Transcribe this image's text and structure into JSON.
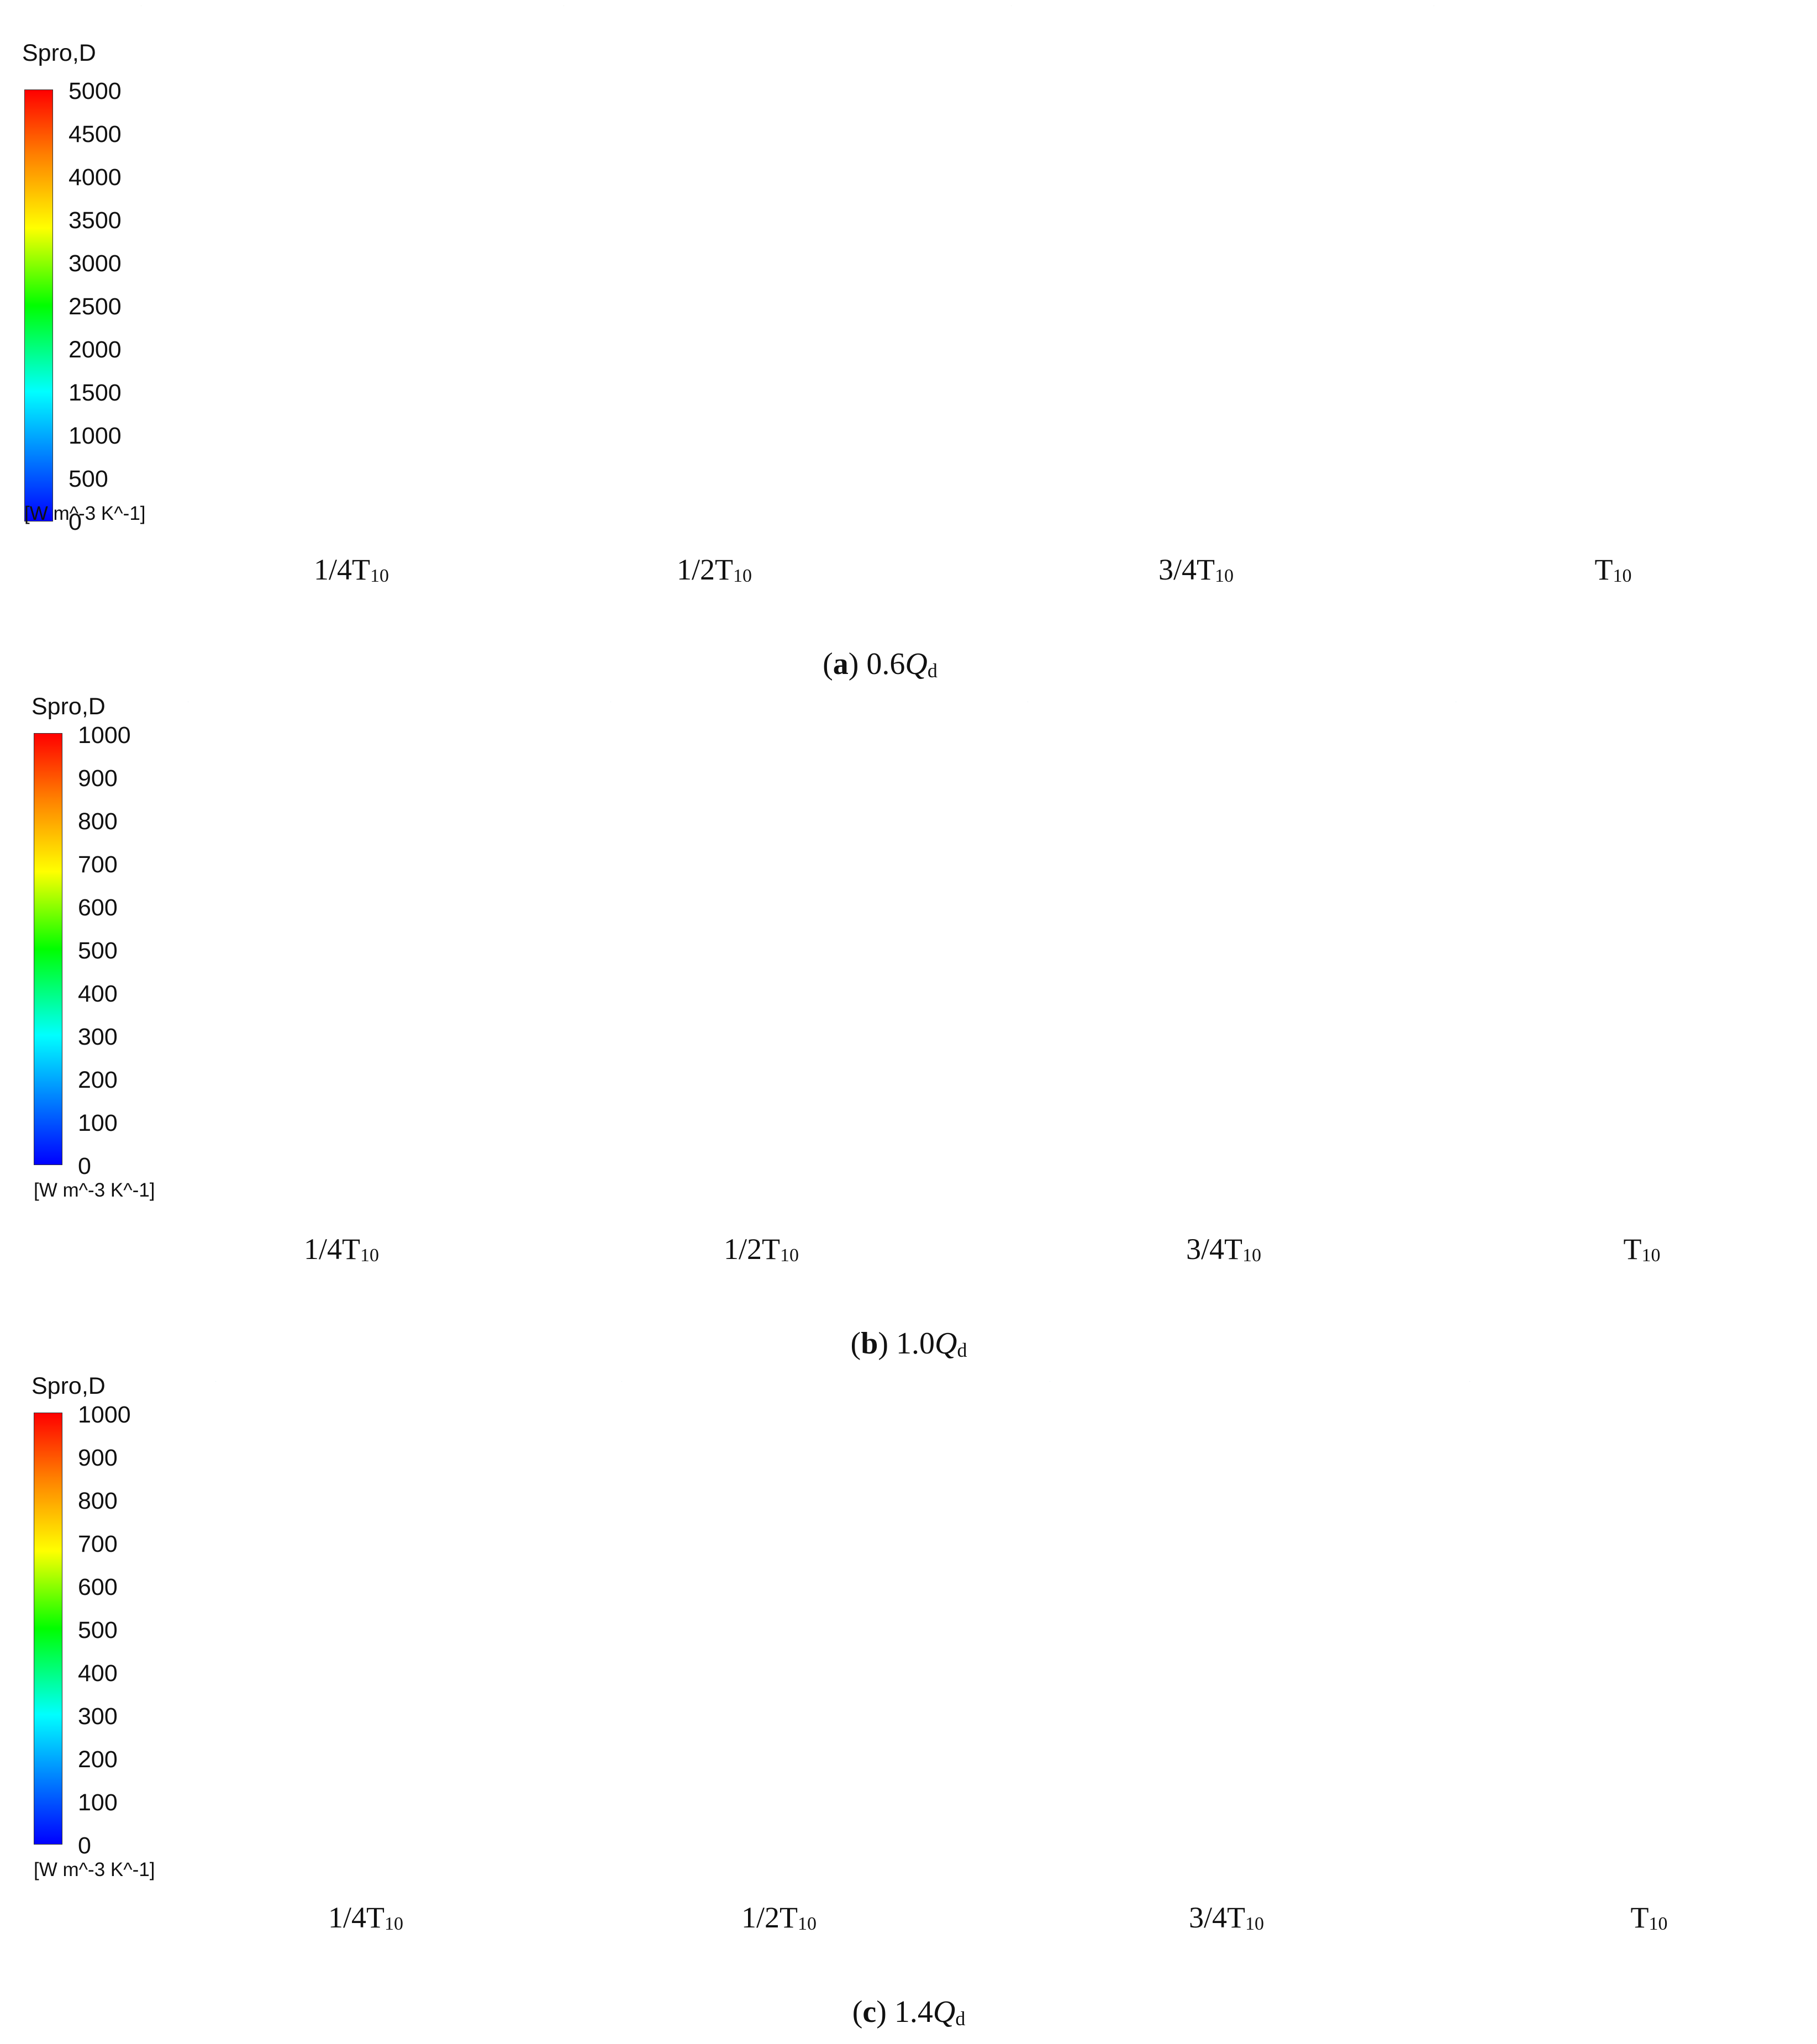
{
  "rows": [
    {
      "id": "a",
      "legend": {
        "title": "Spro,D",
        "ticks": [
          "5000",
          "4500",
          "4000",
          "3500",
          "3000",
          "2500",
          "2000",
          "1500",
          "1000",
          "500",
          "0"
        ],
        "unit": "[W m^-3 K^-1]"
      },
      "captions": [
        "1/4T",
        "1/2T",
        "3/4T",
        "T"
      ],
      "caption_sub": "10",
      "panel_label": {
        "letter": "a",
        "value": "0.6",
        "Q": "Q",
        "sub": "d"
      },
      "palette": [
        "#ff1a00",
        "#ff6a00",
        "#22dd22",
        "#00e6e6",
        "#b8f000"
      ]
    },
    {
      "id": "b",
      "legend": {
        "title": "Spro,D",
        "ticks": [
          "1000",
          "900",
          "800",
          "700",
          "600",
          "500",
          "400",
          "300",
          "200",
          "100",
          "0"
        ],
        "unit": "[W m^-3 K^-1]"
      },
      "captions": [
        "1/4T",
        "1/2T",
        "3/4T",
        "T"
      ],
      "caption_sub": "10",
      "panel_label": {
        "letter": "b",
        "value": "1.0",
        "Q": "Q",
        "sub": "d"
      },
      "palette": [
        "#1e5ef0",
        "#1a8cff",
        "#3fb5ff",
        "#1040d8",
        "#00c8ff"
      ]
    },
    {
      "id": "c",
      "legend": {
        "title": "Spro,D",
        "ticks": [
          "1000",
          "900",
          "800",
          "700",
          "600",
          "500",
          "400",
          "300",
          "200",
          "100",
          "0"
        ],
        "unit": "[W m^-3 K^-1]"
      },
      "captions": [
        "1/4T",
        "1/2T",
        "3/4T",
        "T"
      ],
      "caption_sub": "10",
      "panel_label": {
        "letter": "c",
        "value": "1.4",
        "Q": "Q",
        "sub": "d"
      },
      "palette": [
        "#1e5ef0",
        "#3fb5ff",
        "#1a8cff",
        "#1040d8",
        "#00c8ff"
      ]
    }
  ]
}
